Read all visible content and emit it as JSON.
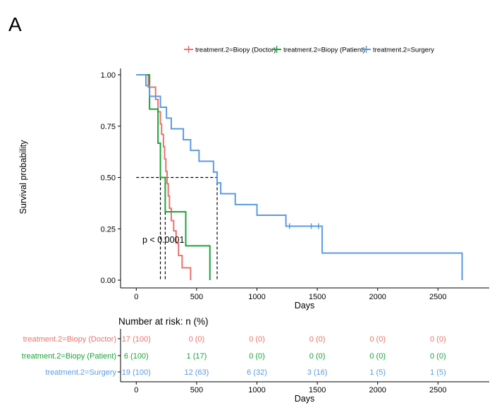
{
  "panel_label": "A",
  "colors": {
    "doctor": "#E8736B",
    "patient": "#1AA33A",
    "surgery": "#5A9BE0",
    "axis": "#000000",
    "median": "#000000"
  },
  "legend": {
    "items": [
      {
        "key": "doctor",
        "label": "treatment.2=Biopy (Doctor)"
      },
      {
        "key": "patient",
        "label": "treatment.2=Biopy (Patient)"
      },
      {
        "key": "surgery",
        "label": "treatment.2=Surgery"
      }
    ]
  },
  "chart_data": {
    "type": "line",
    "subtype": "kaplan-meier",
    "title": "",
    "xlabel": "Days",
    "ylabel": "Survival probability",
    "xlim": [
      -125,
      2930
    ],
    "ylim": [
      0,
      1
    ],
    "xticks": [
      0,
      500,
      1000,
      1500,
      2000,
      2500
    ],
    "yticks": [
      0.0,
      0.25,
      0.5,
      0.75,
      1.0
    ],
    "ytick_labels": [
      "0.00",
      "0.25",
      "0.50",
      "0.75",
      "1.00"
    ],
    "annotation": "p < 0.0001",
    "medians": [
      200,
      240,
      670
    ],
    "series": [
      {
        "name": "treatment.2=Biopy (Doctor)",
        "key": "doctor",
        "steps": [
          [
            0,
            1.0
          ],
          [
            100,
            0.94
          ],
          [
            160,
            0.88
          ],
          [
            180,
            0.82
          ],
          [
            200,
            0.76
          ],
          [
            210,
            0.71
          ],
          [
            225,
            0.65
          ],
          [
            235,
            0.59
          ],
          [
            245,
            0.53
          ],
          [
            255,
            0.47
          ],
          [
            265,
            0.41
          ],
          [
            275,
            0.35
          ],
          [
            290,
            0.29
          ],
          [
            310,
            0.24
          ],
          [
            330,
            0.18
          ],
          [
            350,
            0.12
          ],
          [
            380,
            0.06
          ],
          [
            450,
            0.0
          ]
        ]
      },
      {
        "name": "treatment.2=Biopy (Patient)",
        "key": "patient",
        "steps": [
          [
            0,
            1.0
          ],
          [
            110,
            0.833
          ],
          [
            180,
            0.667
          ],
          [
            200,
            0.5
          ],
          [
            240,
            0.333
          ],
          [
            410,
            0.167
          ],
          [
            610,
            0.0
          ]
        ]
      },
      {
        "name": "treatment.2=Surgery",
        "key": "surgery",
        "steps": [
          [
            0,
            1.0
          ],
          [
            80,
            0.947
          ],
          [
            110,
            0.895
          ],
          [
            200,
            0.842
          ],
          [
            250,
            0.789
          ],
          [
            290,
            0.737
          ],
          [
            390,
            0.684
          ],
          [
            450,
            0.632
          ],
          [
            520,
            0.579
          ],
          [
            640,
            0.526
          ],
          [
            670,
            0.474
          ],
          [
            700,
            0.421
          ],
          [
            820,
            0.368
          ],
          [
            1000,
            0.316
          ],
          [
            1240,
            0.263
          ],
          [
            1540,
            0.132
          ],
          [
            2700,
            0.0
          ]
        ],
        "censors": [
          [
            1270,
            0.263
          ],
          [
            1450,
            0.263
          ],
          [
            1510,
            0.263
          ]
        ]
      }
    ]
  },
  "risk_table": {
    "title": "Number at risk: n (%)",
    "xlabel": "Days",
    "xticks": [
      0,
      500,
      1000,
      1500,
      2000,
      2500
    ],
    "time_points": [
      0,
      500,
      1000,
      1500,
      2000,
      2500
    ],
    "rows": [
      {
        "key": "doctor",
        "label": "treatment.2=Biopy (Doctor)",
        "values": [
          "17 (100)",
          "0 (0)",
          "0 (0)",
          "0 (0)",
          "0 (0)",
          "0 (0)"
        ]
      },
      {
        "key": "patient",
        "label": "treatment.2=Biopy (Patient)",
        "values": [
          "6 (100)",
          "1 (17)",
          "0 (0)",
          "0 (0)",
          "0 (0)",
          "0 (0)"
        ]
      },
      {
        "key": "surgery",
        "label": "treatment.2=Surgery",
        "values": [
          "19 (100)",
          "12 (63)",
          "6 (32)",
          "3 (16)",
          "1 (5)",
          "1 (5)"
        ]
      }
    ]
  }
}
